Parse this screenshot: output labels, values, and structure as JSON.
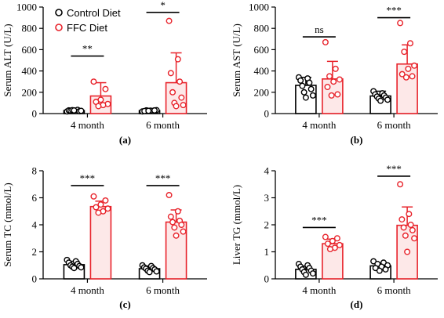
{
  "colors": {
    "control": "#000000",
    "ffc": "#e8232b",
    "ffc_fill": "#fde8e8",
    "control_fill": "#ffffff"
  },
  "legend": {
    "control": "Control Diet",
    "ffc": "FFC Diet"
  },
  "chart_data": [
    {
      "panel": "(a)",
      "type": "bar",
      "ylabel": "Serum ALT (U/L)",
      "ylim": [
        0,
        1000
      ],
      "yticks": [
        0,
        200,
        400,
        600,
        800,
        1000
      ],
      "categories": [
        "4 month",
        "6 month"
      ],
      "series": [
        {
          "name": "Control Diet",
          "values": [
            28,
            28
          ],
          "errors": [
            8,
            6
          ],
          "points": [
            [
              20,
              25,
              30,
              35,
              28,
              22,
              32,
              26,
              30
            ],
            [
              20,
              25,
              30,
              32,
              28,
              24,
              30,
              26
            ]
          ]
        },
        {
          "name": "FFC Diet",
          "values": [
            165,
            290
          ],
          "errors": [
            125,
            280
          ],
          "points": [
            [
              300,
              230,
              130,
              110,
              90,
              80,
              70
            ],
            [
              870,
              510,
              380,
              300,
              200,
              150,
              100,
              80,
              70
            ]
          ]
        }
      ],
      "significance": [
        "**",
        "*"
      ]
    },
    {
      "panel": "(b)",
      "type": "bar",
      "ylabel": "Serum AST (U/L)",
      "ylim": [
        0,
        1000
      ],
      "yticks": [
        0,
        200,
        400,
        600,
        800,
        1000
      ],
      "categories": [
        "4 month",
        "6 month"
      ],
      "series": [
        {
          "name": "Control Diet",
          "values": [
            265,
            165
          ],
          "errors": [
            75,
            45
          ],
          "points": [
            [
              340,
              330,
              310,
              290,
              260,
              230,
              200,
              170,
              150
            ],
            [
              210,
              190,
              180,
              170,
              160,
              150,
              140,
              130,
              120
            ]
          ]
        },
        {
          "name": "FFC Diet",
          "values": [
            325,
            465
          ],
          "errors": [
            165,
            180
          ],
          "points": [
            [
              670,
              420,
              350,
              320,
              300,
              250,
              180,
              170
            ],
            [
              850,
              660,
              580,
              450,
              420,
              370,
              350,
              340
            ]
          ]
        }
      ],
      "significance": [
        "ns",
        "***"
      ]
    },
    {
      "panel": "(c)",
      "type": "bar",
      "ylabel": "Serum TC (mmol/L)",
      "ylim": [
        0,
        8
      ],
      "yticks": [
        0,
        2,
        4,
        6,
        8
      ],
      "categories": [
        "4 month",
        "6 month"
      ],
      "series": [
        {
          "name": "Control Diet",
          "values": [
            1.05,
            0.75
          ],
          "errors": [
            0.25,
            0.2
          ],
          "points": [
            [
              1.4,
              1.3,
              1.2,
              1.1,
              1.0,
              0.95,
              0.9,
              0.85,
              0.8
            ],
            [
              1.0,
              0.95,
              0.85,
              0.8,
              0.75,
              0.7,
              0.6,
              0.55,
              0.5
            ]
          ]
        },
        {
          "name": "FFC Diet",
          "values": [
            5.35,
            4.2
          ],
          "errors": [
            0.4,
            0.9
          ],
          "points": [
            [
              6.1,
              5.8,
              5.5,
              5.3,
              5.2,
              5.0,
              4.9
            ],
            [
              6.2,
              5.0,
              4.6,
              4.3,
              4.2,
              4.0,
              3.8,
              3.5,
              3.2
            ]
          ]
        }
      ],
      "significance": [
        "***",
        "***"
      ]
    },
    {
      "panel": "(d)",
      "type": "bar",
      "ylabel": "Liver TG (mmol/L)",
      "ylim": [
        0,
        4
      ],
      "yticks": [
        0,
        1,
        2,
        3,
        4
      ],
      "categories": [
        "4 month",
        "6 month"
      ],
      "series": [
        {
          "name": "Control Diet",
          "values": [
            0.35,
            0.48
          ],
          "errors": [
            0.12,
            0.1
          ],
          "points": [
            [
              0.55,
              0.5,
              0.45,
              0.4,
              0.35,
              0.3,
              0.25,
              0.2,
              0.15
            ],
            [
              0.65,
              0.6,
              0.55,
              0.5,
              0.45,
              0.4,
              0.35,
              0.3
            ]
          ]
        },
        {
          "name": "FFC Diet",
          "values": [
            1.3,
            1.98
          ],
          "errors": [
            0.17,
            0.68
          ],
          "points": [
            [
              1.55,
              1.5,
              1.4,
              1.3,
              1.25,
              1.15,
              1.1
            ],
            [
              3.5,
              2.4,
              2.2,
              2.0,
              1.9,
              1.8,
              1.6,
              1.5,
              1.0
            ]
          ]
        }
      ],
      "significance": [
        "***",
        "***"
      ]
    }
  ]
}
